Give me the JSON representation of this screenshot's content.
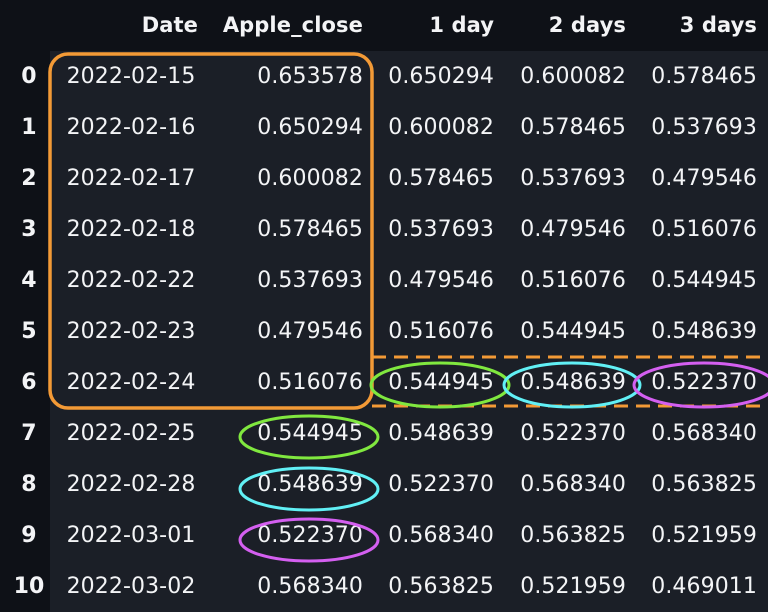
{
  "table": {
    "columns": [
      "",
      "Date",
      "Apple_close",
      "1 day",
      "2 days",
      "3 days"
    ],
    "rows": [
      [
        "0",
        "2022-02-15",
        "0.653578",
        "0.650294",
        "0.600082",
        "0.578465"
      ],
      [
        "1",
        "2022-02-16",
        "0.650294",
        "0.600082",
        "0.578465",
        "0.537693"
      ],
      [
        "2",
        "2022-02-17",
        "0.600082",
        "0.578465",
        "0.537693",
        "0.479546"
      ],
      [
        "3",
        "2022-02-18",
        "0.578465",
        "0.537693",
        "0.479546",
        "0.516076"
      ],
      [
        "4",
        "2022-02-22",
        "0.537693",
        "0.479546",
        "0.516076",
        "0.544945"
      ],
      [
        "5",
        "2022-02-23",
        "0.479546",
        "0.516076",
        "0.544945",
        "0.548639"
      ],
      [
        "6",
        "2022-02-24",
        "0.516076",
        "0.544945",
        "0.548639",
        "0.522370"
      ],
      [
        "7",
        "2022-02-25",
        "0.544945",
        "0.548639",
        "0.522370",
        "0.568340"
      ],
      [
        "8",
        "2022-02-28",
        "0.548639",
        "0.522370",
        "0.568340",
        "0.563825"
      ],
      [
        "9",
        "2022-03-01",
        "0.522370",
        "0.568340",
        "0.563825",
        "0.521959"
      ],
      [
        "10",
        "2022-03-02",
        "0.568340",
        "0.563825",
        "0.521959",
        "0.469011"
      ]
    ]
  },
  "annotation_colors": {
    "window_box": "#f39a36",
    "target_row_dashes": "#f39a36",
    "day1_match": "#80e83f",
    "day2_match": "#61f0f5",
    "day3_match": "#d45ff0"
  }
}
